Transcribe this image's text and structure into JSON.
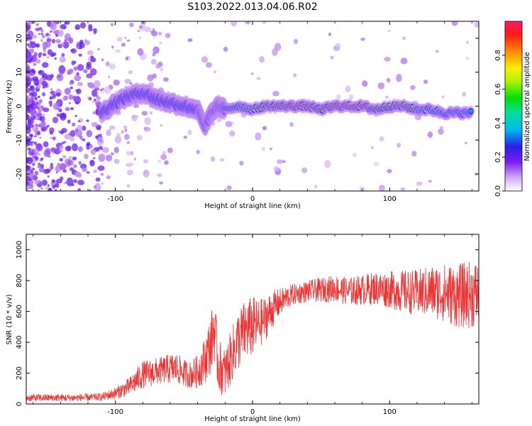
{
  "title": "S103.2022.013.04.06.R02",
  "chart_data": [
    {
      "type": "heatmap",
      "xlabel": "Height of straight line (km)",
      "ylabel": "Frequency (Hz)",
      "xlim": [
        -165,
        165
      ],
      "ylim": [
        -25,
        25
      ],
      "xticks": [
        -100,
        0,
        100
      ],
      "yticks": [
        -20,
        -10,
        0,
        10,
        20
      ],
      "colorbar": {
        "label": "Normalized spectral amplitude",
        "range": [
          0,
          1
        ],
        "ticks": [
          0.0,
          0.2,
          0.4,
          0.6,
          0.8
        ]
      },
      "dominant_frequency_track": {
        "x": [
          -110,
          -100,
          -90,
          -80,
          -70,
          -60,
          -50,
          -40,
          -35,
          -30,
          -25,
          -20,
          -10,
          0,
          10,
          20,
          30,
          40,
          50,
          60,
          70,
          80,
          90,
          100,
          110,
          120,
          130,
          140,
          150,
          160
        ],
        "y": [
          -2,
          1,
          3,
          4,
          2,
          1,
          0,
          -1,
          -6,
          -2,
          0,
          -1,
          0,
          -1,
          0,
          0,
          0,
          0,
          -1,
          0,
          0,
          0,
          -1,
          0,
          0,
          -1,
          -1,
          -2,
          -2,
          -2
        ],
        "amplitude": [
          0.35,
          0.4,
          0.45,
          0.45,
          0.4,
          0.35,
          0.4,
          0.35,
          0.35,
          0.4,
          0.5,
          0.55,
          0.6,
          0.7,
          0.8,
          0.9,
          0.95,
          0.95,
          0.8,
          0.95,
          0.95,
          0.95,
          0.8,
          0.75,
          0.85,
          0.7,
          0.6,
          0.55,
          0.5,
          0.5
        ]
      }
    },
    {
      "type": "line",
      "xlabel": "Height of straight line (km)",
      "ylabel": "SNR (10 * v/v)",
      "xlim": [
        -165,
        165
      ],
      "ylim": [
        0,
        1100
      ],
      "xticks": [
        -100,
        0,
        100
      ],
      "yticks": [
        0,
        200,
        400,
        600,
        800,
        1000
      ],
      "series": [
        {
          "color": "#ee3333",
          "x": [
            -165,
            -150,
            -130,
            -110,
            -100,
            -90,
            -85,
            -80,
            -75,
            -70,
            -65,
            -60,
            -55,
            -50,
            -45,
            -40,
            -35,
            -30,
            -28,
            -25,
            -20,
            -15,
            -10,
            -5,
            0,
            5,
            10,
            15,
            20,
            25,
            30,
            40,
            50,
            60,
            70,
            80,
            90,
            100,
            110,
            120,
            130,
            140,
            150,
            160,
            165
          ],
          "y": [
            40,
            40,
            40,
            45,
            70,
            110,
            150,
            190,
            200,
            210,
            220,
            230,
            230,
            200,
            190,
            210,
            280,
            400,
            500,
            250,
            200,
            320,
            420,
            480,
            500,
            520,
            560,
            620,
            660,
            690,
            710,
            730,
            740,
            750,
            730,
            740,
            750,
            740,
            730,
            720,
            730,
            720,
            700,
            710,
            720
          ],
          "spread": [
            25,
            25,
            25,
            25,
            40,
            60,
            80,
            90,
            90,
            90,
            90,
            100,
            100,
            90,
            90,
            110,
            150,
            200,
            220,
            180,
            160,
            180,
            200,
            200,
            200,
            160,
            140,
            120,
            90,
            80,
            70,
            70,
            80,
            90,
            90,
            100,
            110,
            120,
            140,
            150,
            170,
            190,
            210,
            220,
            220
          ]
        }
      ]
    }
  ]
}
